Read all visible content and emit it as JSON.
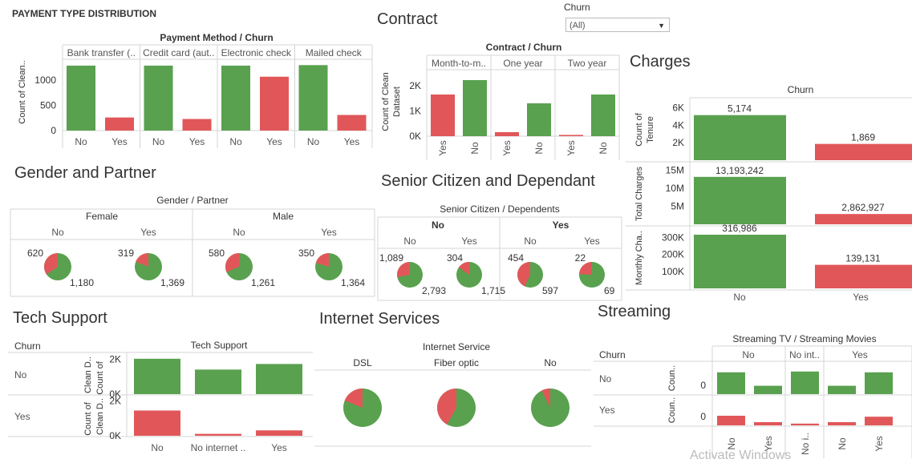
{
  "colors": {
    "no": "#59a14f",
    "yes": "#e15759"
  },
  "titles": {
    "payment": "PAYMENT TYPE DISTRIBUTION",
    "contract": "Contract",
    "charges": "Charges",
    "gender": "Gender and Partner",
    "senior": "Senior Citizen and Dependant",
    "tech": "Tech Support",
    "internet": "Internet Services",
    "streaming": "Streaming"
  },
  "filter": {
    "label": "Churn",
    "value": "(All)"
  },
  "watermark": "Activate Windows",
  "chart_data": [
    {
      "id": "payment",
      "type": "bar",
      "title": "Payment Method / Churn",
      "ylabel": "Count of Clean..",
      "panels": [
        "Bank transfer (..",
        "Credit card (aut..",
        "Electronic check",
        "Mailed check"
      ],
      "categories": [
        "No",
        "Yes"
      ],
      "values": [
        [
          1290,
          260
        ],
        [
          1290,
          230
        ],
        [
          1290,
          1070
        ],
        [
          1300,
          310
        ]
      ],
      "yticks": [
        "1000",
        "500",
        "0"
      ],
      "ylim": [
        0,
        1400
      ]
    },
    {
      "id": "contract",
      "type": "bar",
      "title": "Contract / Churn",
      "ylabel": "Count of Clean Dataset",
      "panels": [
        "Month-to-m..",
        "One year",
        "Two year"
      ],
      "categories": [
        "Yes",
        "No"
      ],
      "values": [
        [
          1650,
          2220
        ],
        [
          160,
          1300
        ],
        [
          50,
          1650
        ]
      ],
      "yticks": [
        "2K",
        "1K",
        "0K"
      ],
      "ylim": [
        0,
        2600
      ]
    },
    {
      "id": "charges",
      "type": "bar",
      "title": "Churn",
      "categories": [
        "No",
        "Yes"
      ],
      "rows": [
        {
          "ylabel": "Count of Tenure",
          "values": [
            5174,
            1869
          ],
          "labels": [
            "5,174",
            "1,869"
          ],
          "yticks": [
            "6K",
            "4K",
            "2K"
          ],
          "ylim": [
            0,
            6800
          ]
        },
        {
          "ylabel": "Total Charges",
          "values": [
            13193242,
            2862927
          ],
          "labels": [
            "13,193,242",
            "2,862,927"
          ],
          "yticks": [
            "15M",
            "10M",
            "5M"
          ],
          "ylim": [
            0,
            16500000
          ]
        },
        {
          "ylabel": "Monthly Cha..",
          "values": [
            316986,
            139131
          ],
          "labels": [
            "316,986",
            "139,131"
          ],
          "yticks": [
            "300K",
            "200K",
            "100K"
          ],
          "ylim": [
            0,
            350000
          ]
        }
      ]
    },
    {
      "id": "gender",
      "type": "pie",
      "title": "Gender / Partner",
      "groups": [
        "Female",
        "Male"
      ],
      "subgroups": [
        "No",
        "Yes"
      ],
      "pies": [
        {
          "yes": 620,
          "no": 1180,
          "yes_label": "620",
          "no_label": "1,180"
        },
        {
          "yes": 319,
          "no": 1369,
          "yes_label": "319",
          "no_label": "1,369"
        },
        {
          "yes": 580,
          "no": 1261,
          "yes_label": "580",
          "no_label": "1,261"
        },
        {
          "yes": 350,
          "no": 1364,
          "yes_label": "350",
          "no_label": "1,364"
        }
      ]
    },
    {
      "id": "senior",
      "type": "pie",
      "title": "Senior Citizen / Dependents",
      "groups": [
        "No",
        "Yes"
      ],
      "subgroups": [
        "No",
        "Yes"
      ],
      "pies": [
        {
          "yes": 1089,
          "no": 2793,
          "yes_label": "1,089",
          "no_label": "2,793"
        },
        {
          "yes": 304,
          "no": 1715,
          "yes_label": "304",
          "no_label": "1,715"
        },
        {
          "yes": 454,
          "no": 597,
          "yes_label": "454",
          "no_label": "597"
        },
        {
          "yes": 22,
          "no": 69,
          "yes_label": "22",
          "no_label": "69"
        }
      ]
    },
    {
      "id": "tech",
      "type": "bar",
      "title": "Tech Support",
      "rowheader": "Churn",
      "rows": [
        "No",
        "Yes"
      ],
      "ylabel": "Count of Clean D..",
      "categories": [
        "No",
        "No internet ..",
        "Yes"
      ],
      "values": [
        [
          2030,
          1410,
          1730
        ],
        [
          1450,
          110,
          310
        ]
      ],
      "yticks": [
        "2K",
        "0K"
      ],
      "ylim": [
        0,
        2300
      ]
    },
    {
      "id": "internet",
      "type": "pie",
      "title": "Internet Service",
      "categories": [
        "DSL",
        "Fiber optic",
        "No"
      ],
      "pies": [
        {
          "yes": 459,
          "no": 1962
        },
        {
          "yes": 1297,
          "no": 1799
        },
        {
          "yes": 113,
          "no": 1413
        }
      ]
    },
    {
      "id": "streaming",
      "type": "bar",
      "title": "Streaming TV / Streaming Movies",
      "rowheader": "Churn",
      "rows": [
        "No",
        "Yes"
      ],
      "ylabel": "Coun..",
      "groups": [
        "No",
        "No int..",
        "Yes"
      ],
      "categories": [
        "No",
        "Yes",
        "No i..",
        "No",
        "Yes"
      ],
      "values": [
        [
          1360,
          520,
          1410,
          520,
          1360
        ],
        [
          600,
          200,
          110,
          200,
          540
        ]
      ],
      "yticks": [
        "0"
      ],
      "ylim": [
        0,
        1500
      ]
    }
  ]
}
